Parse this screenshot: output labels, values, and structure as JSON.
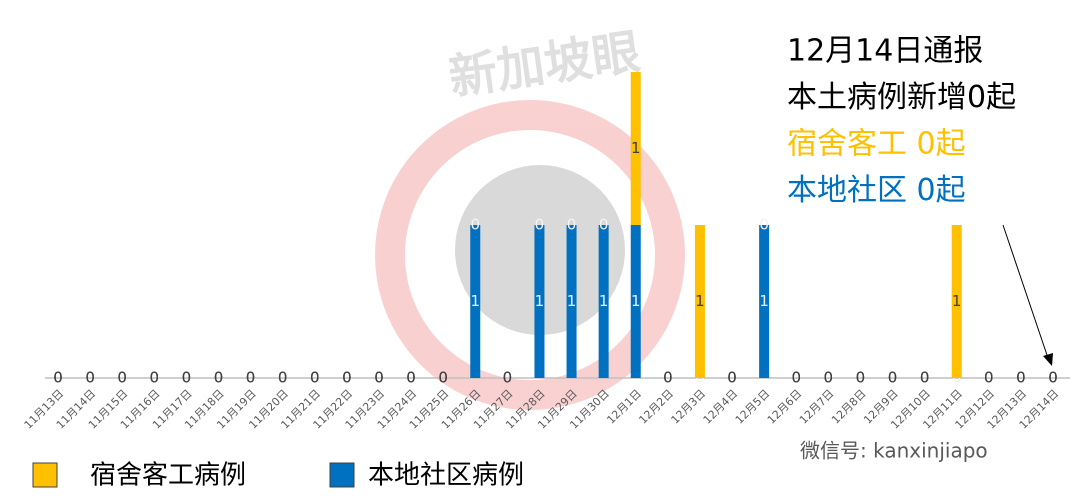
{
  "chart_data": {
    "type": "bar",
    "stacked": true,
    "categories": [
      "11月13日",
      "11月14日",
      "11月15日",
      "11月16日",
      "11月17日",
      "11月18日",
      "11月19日",
      "11月20日",
      "11月21日",
      "11月22日",
      "11月23日",
      "11月24日",
      "11月25日",
      "11月26日",
      "11月27日",
      "11月28日",
      "11月29日",
      "11月30日",
      "12月1日",
      "12月2日",
      "12月3日",
      "12月4日",
      "12月5日",
      "12月6日",
      "12月7日",
      "12月8日",
      "12月9日",
      "12月10日",
      "12月11日",
      "12月12日",
      "12月13日",
      "12月14日"
    ],
    "series": [
      {
        "name": "本地社区病例",
        "color": "#0070C0",
        "values": [
          0,
          0,
          0,
          0,
          0,
          0,
          0,
          0,
          0,
          0,
          0,
          0,
          0,
          1,
          0,
          1,
          1,
          1,
          1,
          0,
          0,
          0,
          1,
          0,
          0,
          0,
          0,
          0,
          0,
          0,
          0,
          0
        ]
      },
      {
        "name": "宿舍客工病例",
        "color": "#FFC000",
        "values": [
          0,
          0,
          0,
          0,
          0,
          0,
          0,
          0,
          0,
          0,
          0,
          0,
          0,
          0,
          0,
          0,
          0,
          0,
          1,
          0,
          1,
          0,
          0,
          0,
          0,
          0,
          0,
          0,
          1,
          0,
          0,
          0
        ]
      }
    ],
    "legend_order": [
      1,
      0
    ],
    "annotation": [
      {
        "text": "12月14日通报",
        "color": "#000000"
      },
      {
        "text": "本土病例新增0起",
        "color": "#000000"
      },
      {
        "text": "宿舍客工 0起",
        "color": "#FFC000"
      },
      {
        "text": "本地社区 0起",
        "color": "#0070C0"
      }
    ],
    "watermark": "新加坡眼",
    "wechat": "微信号: kanxinjiapo"
  }
}
